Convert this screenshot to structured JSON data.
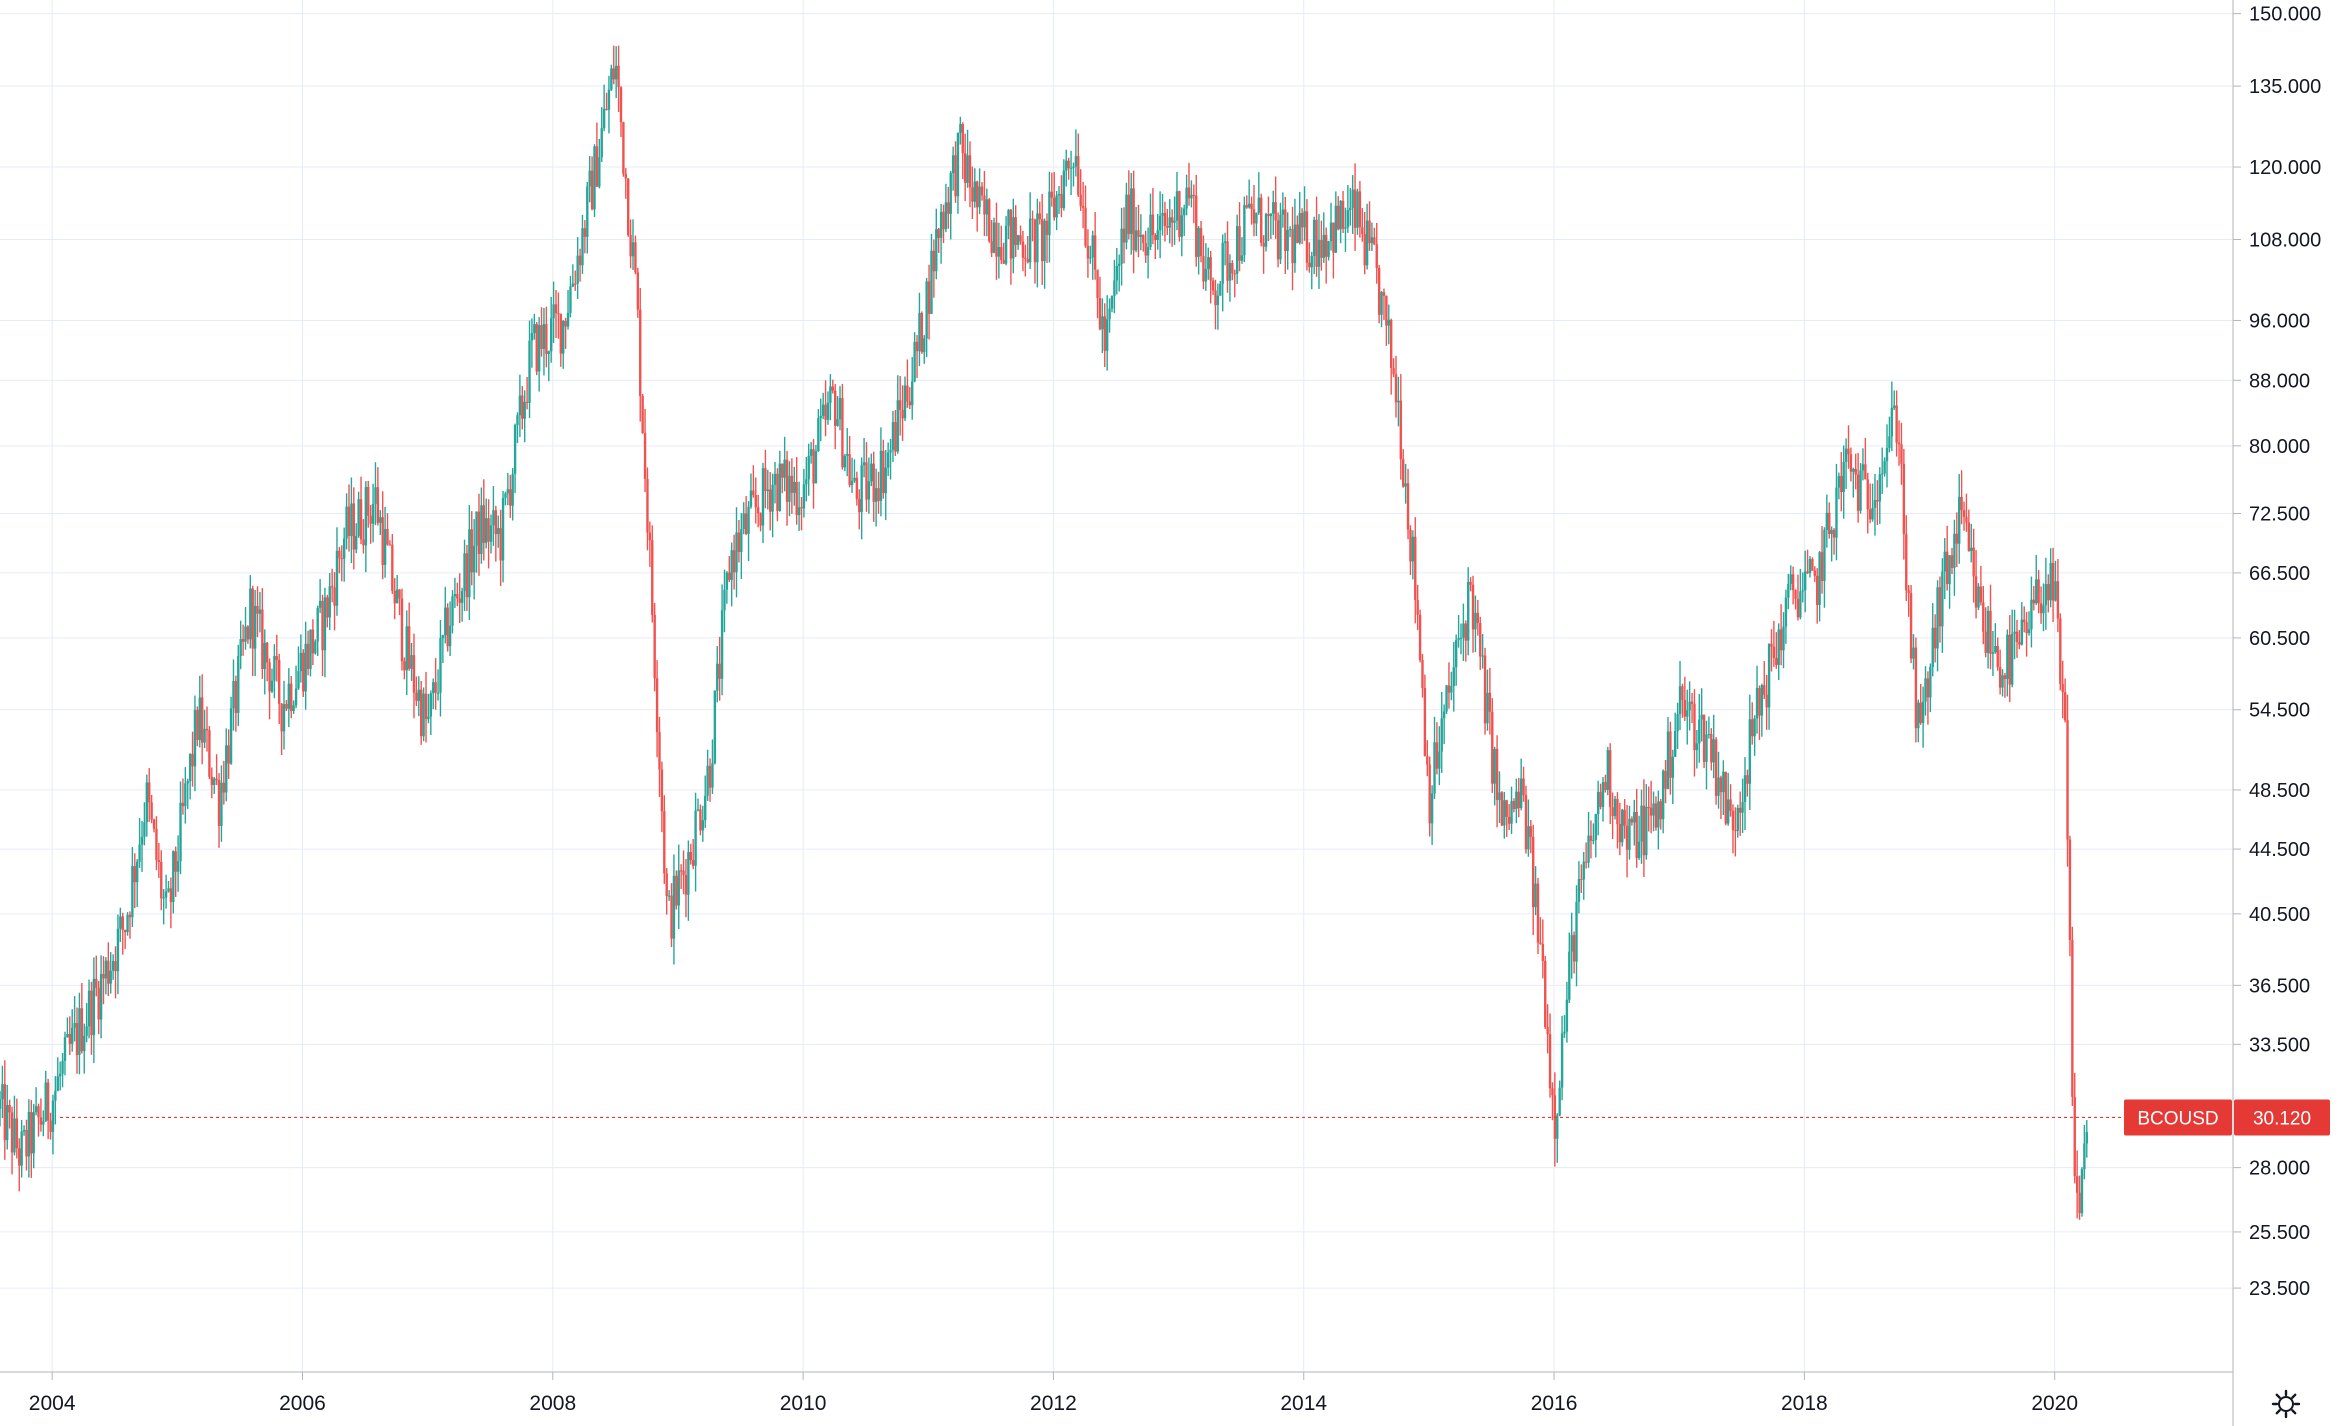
{
  "symbol": "BCOUSD",
  "last_price_label": "30.120",
  "last_price": 30.12,
  "colors": {
    "up": "#26a69a",
    "down": "#ef5350",
    "price_line": "#e53935",
    "grid": "#e6ecf5",
    "axis_text": "#131722"
  },
  "icons": {
    "settings": "gear-icon"
  },
  "chart_data": {
    "type": "candlestick",
    "title": "",
    "xlabel": "",
    "ylabel": "",
    "scale": "log",
    "grid": true,
    "x_ticks": [
      "2004",
      "2006",
      "2008",
      "2010",
      "2012",
      "2014",
      "2016",
      "2018",
      "2020"
    ],
    "y_ticks": [
      "150.000",
      "135.000",
      "120.000",
      "108.000",
      "96.000",
      "88.000",
      "80.000",
      "72.500",
      "66.500",
      "60.500",
      "54.500",
      "48.500",
      "44.500",
      "40.500",
      "36.500",
      "33.500",
      "28.000",
      "25.500",
      "23.500"
    ],
    "xlim": [
      "2003-08",
      "2021-06"
    ],
    "ylim": [
      20.8,
      153
    ],
    "series": [
      {
        "values": [
          [
            "2003-08",
            30.5
          ],
          [
            "2003-10",
            28.5
          ],
          [
            "2004-01",
            31.0
          ],
          [
            "2004-03",
            33.5
          ],
          [
            "2004-06",
            37.0
          ],
          [
            "2004-08",
            40.0
          ],
          [
            "2004-10",
            48.0
          ],
          [
            "2004-12",
            40.0
          ],
          [
            "2005-03",
            54.0
          ],
          [
            "2005-05",
            48.0
          ],
          [
            "2005-08",
            63.0
          ],
          [
            "2005-11",
            55.0
          ],
          [
            "2006-03",
            62.0
          ],
          [
            "2006-05",
            70.0
          ],
          [
            "2006-08",
            74.0
          ],
          [
            "2006-11",
            59.0
          ],
          [
            "2007-01",
            53.0
          ],
          [
            "2007-03",
            62.0
          ],
          [
            "2007-06",
            71.0
          ],
          [
            "2007-08",
            70.0
          ],
          [
            "2007-11",
            92.0
          ],
          [
            "2008-02",
            96.0
          ],
          [
            "2008-04",
            110.0
          ],
          [
            "2008-07",
            140.0
          ],
          [
            "2008-09",
            100.0
          ],
          [
            "2008-11",
            55.0
          ],
          [
            "2008-12",
            40.0
          ],
          [
            "2009-02",
            44.0
          ],
          [
            "2009-04",
            50.0
          ],
          [
            "2009-06",
            68.0
          ],
          [
            "2009-08",
            72.0
          ],
          [
            "2009-10",
            76.0
          ],
          [
            "2010-01",
            75.0
          ],
          [
            "2010-04",
            86.0
          ],
          [
            "2010-06",
            74.0
          ],
          [
            "2010-09",
            78.0
          ],
          [
            "2010-12",
            92.0
          ],
          [
            "2011-02",
            110.0
          ],
          [
            "2011-04",
            123.0
          ],
          [
            "2011-06",
            112.0
          ],
          [
            "2011-09",
            108.0
          ],
          [
            "2011-12",
            108.0
          ],
          [
            "2012-03",
            124.0
          ],
          [
            "2012-06",
            92.0
          ],
          [
            "2012-08",
            112.0
          ],
          [
            "2012-11",
            108.0
          ],
          [
            "2013-02",
            116.0
          ],
          [
            "2013-04",
            100.0
          ],
          [
            "2013-08",
            112.0
          ],
          [
            "2013-11",
            108.0
          ],
          [
            "2014-02",
            108.0
          ],
          [
            "2014-06",
            112.0
          ],
          [
            "2014-08",
            102.0
          ],
          [
            "2014-10",
            86.0
          ],
          [
            "2014-12",
            62.0
          ],
          [
            "2015-01",
            48.0
          ],
          [
            "2015-03",
            56.0
          ],
          [
            "2015-05",
            65.0
          ],
          [
            "2015-08",
            46.0
          ],
          [
            "2015-10",
            48.0
          ],
          [
            "2015-12",
            37.0
          ],
          [
            "2016-01",
            30.0
          ],
          [
            "2016-03",
            40.0
          ],
          [
            "2016-06",
            50.0
          ],
          [
            "2016-08",
            45.0
          ],
          [
            "2016-11",
            47.0
          ],
          [
            "2017-01",
            55.0
          ],
          [
            "2017-04",
            52.0
          ],
          [
            "2017-06",
            46.0
          ],
          [
            "2017-09",
            56.0
          ],
          [
            "2017-12",
            65.0
          ],
          [
            "2018-02",
            65.0
          ],
          [
            "2018-05",
            78.0
          ],
          [
            "2018-07",
            74.0
          ],
          [
            "2018-10",
            84.0
          ],
          [
            "2018-11",
            62.0
          ],
          [
            "2018-12",
            52.0
          ],
          [
            "2019-02",
            64.0
          ],
          [
            "2019-04",
            72.0
          ],
          [
            "2019-06",
            62.0
          ],
          [
            "2019-08",
            58.0
          ],
          [
            "2019-10",
            60.0
          ],
          [
            "2019-12",
            66.0
          ],
          [
            "2020-01",
            64.0
          ],
          [
            "2020-02",
            52.0
          ],
          [
            "2020-03",
            26.0
          ],
          [
            "2020-04",
            29.0
          ],
          [
            "2020-04",
            30.12
          ]
        ]
      }
    ]
  }
}
